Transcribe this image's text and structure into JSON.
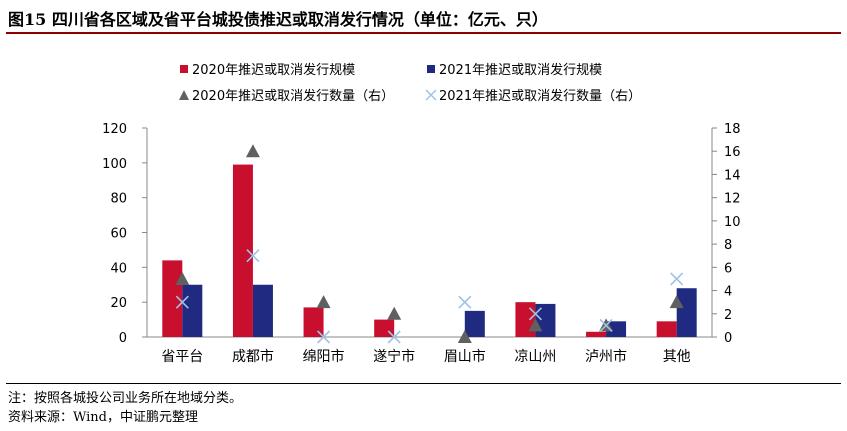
{
  "title": "图15  四川省各区域及省平台城投债推迟或取消发行情况（单位：亿元、只）",
  "notes": [
    "注：按照各城投公司业务所在地域分类。",
    "资料来源：Wind，中证鹏元整理"
  ],
  "chart_data": {
    "type": "bar",
    "categories": [
      "省平台",
      "成都市",
      "绵阳市",
      "遂宁市",
      "眉山市",
      "凉山州",
      "泸州市",
      "其他"
    ],
    "series": [
      {
        "name": "2020年推迟或取消发行规模",
        "kind": "bar",
        "axis": "left",
        "color": "#c8102e",
        "values": [
          44,
          99,
          17,
          10,
          0,
          20,
          3,
          9
        ]
      },
      {
        "name": "2021年推迟或取消发行规模",
        "kind": "bar",
        "axis": "left",
        "color": "#1f2a80",
        "values": [
          30,
          30,
          0,
          0,
          15,
          19,
          9,
          28
        ]
      },
      {
        "name": "2020年推迟或取消发行数量（右）",
        "kind": "triangle",
        "axis": "right",
        "color": "#606060",
        "values": [
          5,
          16,
          3,
          2,
          0,
          1,
          1,
          3
        ]
      },
      {
        "name": "2021年推迟或取消发行数量（右）",
        "kind": "cross",
        "axis": "right",
        "color": "#9dc3e6",
        "values": [
          3,
          7,
          0,
          0,
          3,
          2,
          1,
          5
        ]
      }
    ],
    "ylim_left": [
      0,
      120
    ],
    "yticks_left": [
      0,
      20,
      40,
      60,
      80,
      100,
      120
    ],
    "ylim_right": [
      0,
      18
    ],
    "yticks_right": [
      0,
      2,
      4,
      6,
      8,
      10,
      12,
      14,
      16,
      18
    ],
    "legend": "top",
    "grid": false
  }
}
